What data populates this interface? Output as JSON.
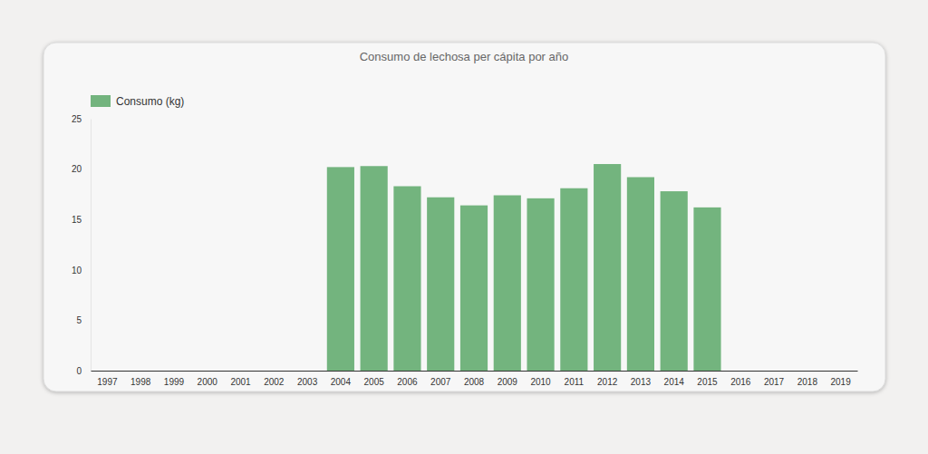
{
  "chart_data": {
    "type": "bar",
    "title": "Consumo de lechosa per cápita por año",
    "categories": [
      "1997",
      "1998",
      "1999",
      "2000",
      "2001",
      "2002",
      "2003",
      "2004",
      "2005",
      "2006",
      "2007",
      "2008",
      "2009",
      "2010",
      "2011",
      "2012",
      "2013",
      "2014",
      "2015",
      "2016",
      "2017",
      "2018",
      "2019"
    ],
    "series": [
      {
        "name": "Consumo (kg)",
        "color": "#73b47e",
        "values": [
          null,
          null,
          null,
          null,
          null,
          null,
          null,
          20.2,
          20.3,
          18.3,
          17.2,
          16.4,
          17.4,
          17.1,
          18.1,
          20.5,
          19.2,
          17.8,
          16.2,
          null,
          null,
          null,
          null
        ]
      }
    ],
    "ylim": [
      0,
      25
    ],
    "yticks": [
      0,
      5,
      10,
      15,
      20,
      25
    ],
    "grid": false,
    "legend": "top-left"
  }
}
